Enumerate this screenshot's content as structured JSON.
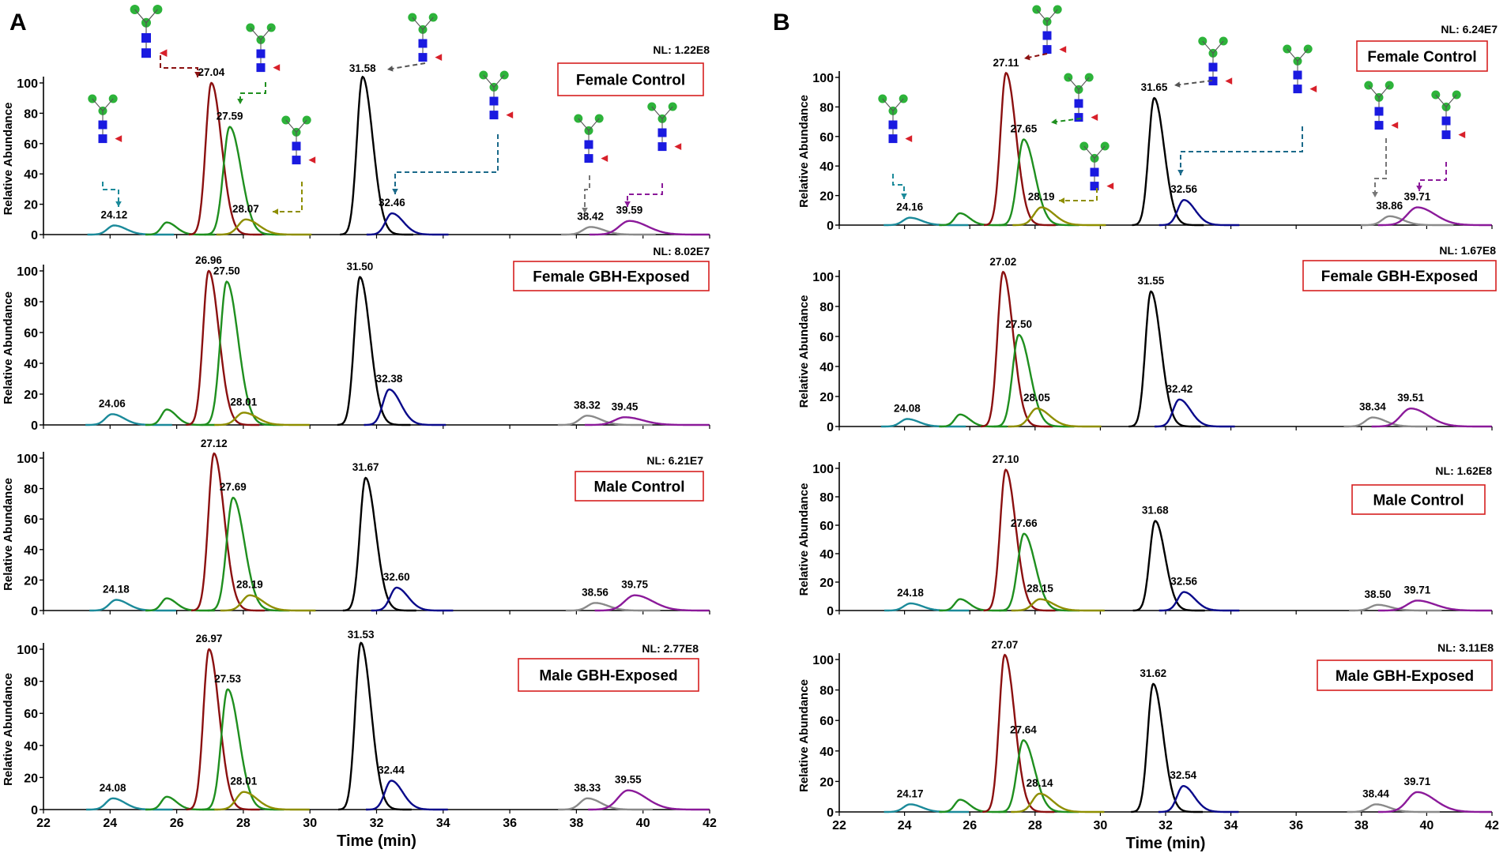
{
  "chart_data": [
    {
      "panel": "A",
      "type": "line",
      "xlabel": "Time (min)",
      "ylabel": "Relative Abundance",
      "xlim": [
        22,
        42
      ],
      "ylim": [
        0,
        100
      ],
      "x_ticks": [
        "22",
        "24",
        "26",
        "28",
        "30",
        "32",
        "34",
        "36",
        "38",
        "40",
        "42"
      ],
      "y_ticks": [
        "0",
        "20",
        "40",
        "60",
        "80",
        "100"
      ],
      "series_colors": [
        "#1b8a9a",
        "#1f8f1f",
        "#8b1010",
        "#1f8f1f",
        "#8e8e00",
        "#000000",
        "#0a0a8a",
        "#8a8a8a",
        "#8b1a9a"
      ],
      "subplots": [
        {
          "condition": "Female Control",
          "nl": "NL: 1.22E8",
          "peaks": [
            {
              "rt": 24.12,
              "height": 6,
              "label": "24.12"
            },
            {
              "rt": 25.7,
              "height": 8,
              "label": ""
            },
            {
              "rt": 27.04,
              "height": 100,
              "label": "27.04"
            },
            {
              "rt": 27.59,
              "height": 71,
              "label": "27.59"
            },
            {
              "rt": 28.07,
              "height": 10,
              "label": "28.07"
            },
            {
              "rt": 31.58,
              "height": 104,
              "label": "31.58"
            },
            {
              "rt": 32.46,
              "height": 14,
              "label": "32.46"
            },
            {
              "rt": 38.42,
              "height": 5,
              "label": "38.42"
            },
            {
              "rt": 39.59,
              "height": 9,
              "label": "39.59"
            }
          ]
        },
        {
          "condition": "Female GBH-Exposed",
          "nl": "NL: 8.02E7",
          "peaks": [
            {
              "rt": 24.06,
              "height": 7,
              "label": "24.06"
            },
            {
              "rt": 25.7,
              "height": 10,
              "label": ""
            },
            {
              "rt": 26.96,
              "height": 100,
              "label": "26.96"
            },
            {
              "rt": 27.5,
              "height": 93,
              "label": "27.50"
            },
            {
              "rt": 28.01,
              "height": 8,
              "label": "28.01"
            },
            {
              "rt": 31.5,
              "height": 96,
              "label": "31.50"
            },
            {
              "rt": 32.38,
              "height": 23,
              "label": "32.38"
            },
            {
              "rt": 38.32,
              "height": 6,
              "label": "38.32"
            },
            {
              "rt": 39.45,
              "height": 5,
              "label": "39.45"
            }
          ]
        },
        {
          "condition": "Male Control",
          "nl": "NL: 6.21E7",
          "peaks": [
            {
              "rt": 24.18,
              "height": 7,
              "label": "24.18"
            },
            {
              "rt": 25.7,
              "height": 8,
              "label": ""
            },
            {
              "rt": 27.12,
              "height": 103,
              "label": "27.12"
            },
            {
              "rt": 27.69,
              "height": 74,
              "label": "27.69"
            },
            {
              "rt": 28.19,
              "height": 10,
              "label": "28.19"
            },
            {
              "rt": 31.67,
              "height": 87,
              "label": "31.67"
            },
            {
              "rt": 32.6,
              "height": 15,
              "label": "32.60"
            },
            {
              "rt": 38.56,
              "height": 5,
              "label": "38.56"
            },
            {
              "rt": 39.75,
              "height": 10,
              "label": "39.75"
            }
          ]
        },
        {
          "condition": "Male GBH-Exposed",
          "nl": "NL: 2.77E8",
          "peaks": [
            {
              "rt": 24.08,
              "height": 7,
              "label": "24.08"
            },
            {
              "rt": 25.7,
              "height": 8,
              "label": ""
            },
            {
              "rt": 26.97,
              "height": 100,
              "label": "26.97"
            },
            {
              "rt": 27.53,
              "height": 75,
              "label": "27.53"
            },
            {
              "rt": 28.01,
              "height": 11,
              "label": "28.01"
            },
            {
              "rt": 31.53,
              "height": 104,
              "label": "31.53"
            },
            {
              "rt": 32.44,
              "height": 18,
              "label": "32.44"
            },
            {
              "rt": 38.33,
              "height": 7,
              "label": "38.33"
            },
            {
              "rt": 39.55,
              "height": 12,
              "label": "39.55"
            }
          ]
        }
      ]
    },
    {
      "panel": "B",
      "type": "line",
      "xlabel": "Time (min)",
      "ylabel": "Relative Abundance",
      "xlim": [
        22,
        42
      ],
      "ylim": [
        0,
        100
      ],
      "x_ticks": [
        "22",
        "24",
        "26",
        "28",
        "30",
        "32",
        "34",
        "36",
        "38",
        "40",
        "42"
      ],
      "y_ticks": [
        "0",
        "20",
        "40",
        "60",
        "80",
        "100"
      ],
      "series_colors": [
        "#1b8a9a",
        "#1f8f1f",
        "#8b1010",
        "#1f8f1f",
        "#8e8e00",
        "#000000",
        "#0a0a8a",
        "#8a8a8a",
        "#8b1a9a"
      ],
      "subplots": [
        {
          "condition": "Female Control",
          "nl": "NL: 6.24E7",
          "peaks": [
            {
              "rt": 24.16,
              "height": 5,
              "label": "24.16"
            },
            {
              "rt": 25.7,
              "height": 8,
              "label": ""
            },
            {
              "rt": 27.11,
              "height": 103,
              "label": "27.11"
            },
            {
              "rt": 27.65,
              "height": 58,
              "label": "27.65"
            },
            {
              "rt": 28.19,
              "height": 12,
              "label": "28.19"
            },
            {
              "rt": 31.65,
              "height": 86,
              "label": "31.65"
            },
            {
              "rt": 32.56,
              "height": 17,
              "label": "32.56"
            },
            {
              "rt": 38.86,
              "height": 6,
              "label": "38.86"
            },
            {
              "rt": 39.71,
              "height": 12,
              "label": "39.71"
            }
          ]
        },
        {
          "condition": "Female GBH-Exposed",
          "nl": "NL: 1.67E8",
          "peaks": [
            {
              "rt": 24.08,
              "height": 5,
              "label": "24.08"
            },
            {
              "rt": 25.7,
              "height": 8,
              "label": ""
            },
            {
              "rt": 27.02,
              "height": 103,
              "label": "27.02"
            },
            {
              "rt": 27.5,
              "height": 61,
              "label": "27.50"
            },
            {
              "rt": 28.05,
              "height": 12,
              "label": "28.05"
            },
            {
              "rt": 31.55,
              "height": 90,
              "label": "31.55"
            },
            {
              "rt": 32.42,
              "height": 18,
              "label": "32.42"
            },
            {
              "rt": 38.34,
              "height": 6,
              "label": "38.34"
            },
            {
              "rt": 39.51,
              "height": 12,
              "label": "39.51"
            }
          ]
        },
        {
          "condition": "Male Control",
          "nl": "NL: 1.62E8",
          "peaks": [
            {
              "rt": 24.18,
              "height": 5,
              "label": "24.18"
            },
            {
              "rt": 25.7,
              "height": 8,
              "label": ""
            },
            {
              "rt": 27.1,
              "height": 99,
              "label": "27.10"
            },
            {
              "rt": 27.66,
              "height": 54,
              "label": "27.66"
            },
            {
              "rt": 28.15,
              "height": 8,
              "label": "28.15"
            },
            {
              "rt": 31.68,
              "height": 63,
              "label": "31.68"
            },
            {
              "rt": 32.56,
              "height": 13,
              "label": "32.56"
            },
            {
              "rt": 38.5,
              "height": 4,
              "label": "38.50"
            },
            {
              "rt": 39.71,
              "height": 7,
              "label": "39.71"
            }
          ]
        },
        {
          "condition": "Male GBH-Exposed",
          "nl": "NL: 3.11E8",
          "peaks": [
            {
              "rt": 24.17,
              "height": 5,
              "label": "24.17"
            },
            {
              "rt": 25.7,
              "height": 8,
              "label": ""
            },
            {
              "rt": 27.07,
              "height": 103,
              "label": "27.07"
            },
            {
              "rt": 27.64,
              "height": 47,
              "label": "27.64"
            },
            {
              "rt": 28.14,
              "height": 12,
              "label": "28.14"
            },
            {
              "rt": 31.62,
              "height": 84,
              "label": "31.62"
            },
            {
              "rt": 32.54,
              "height": 17,
              "label": "32.54"
            },
            {
              "rt": 38.44,
              "height": 5,
              "label": "38.44"
            },
            {
              "rt": 39.71,
              "height": 13,
              "label": "39.71"
            }
          ]
        }
      ]
    }
  ]
}
